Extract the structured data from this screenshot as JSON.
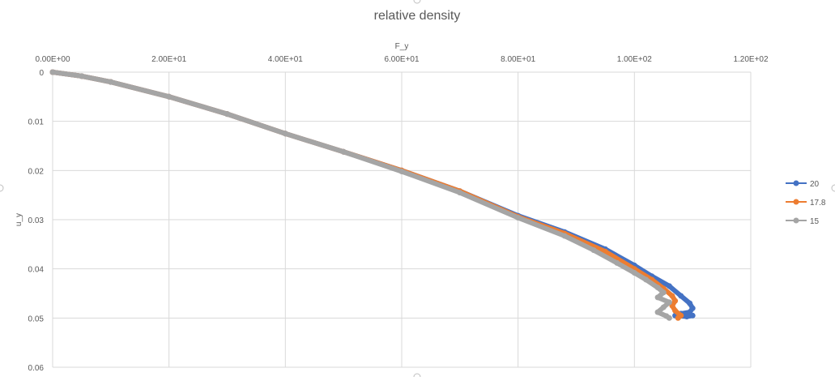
{
  "chart_data": {
    "type": "line",
    "title": "relative density",
    "xlabel": "F_y",
    "ylabel": "u_y",
    "xlim": [
      0,
      120
    ],
    "ylim": [
      0,
      0.06
    ],
    "y_reversed": true,
    "x_axis_position": "top",
    "x_ticks": [
      0,
      20,
      40,
      60,
      80,
      100,
      120
    ],
    "x_tick_labels": [
      "0.00E+00",
      "2.00E+01",
      "4.00E+01",
      "6.00E+01",
      "8.00E+01",
      "1.00E+02",
      "1.20E+02"
    ],
    "y_ticks": [
      0,
      0.01,
      0.02,
      0.03,
      0.04,
      0.05,
      0.06
    ],
    "y_tick_labels": [
      "0",
      "0.01",
      "0.02",
      "0.03",
      "0.04",
      "0.05",
      "0.06"
    ],
    "grid": true,
    "legend": "right",
    "series": [
      {
        "name": "20",
        "color": "#4472c4",
        "x": [
          0,
          5,
          10,
          20,
          30,
          40,
          50,
          60,
          70,
          80,
          88,
          95,
          100,
          103,
          106,
          108,
          109.5,
          110,
          109.5,
          108,
          107,
          109,
          110
        ],
        "y": [
          0,
          0.0008,
          0.002,
          0.005,
          0.0085,
          0.0125,
          0.0162,
          0.02,
          0.0242,
          0.0292,
          0.0325,
          0.036,
          0.0393,
          0.0415,
          0.0435,
          0.0455,
          0.047,
          0.048,
          0.0488,
          0.0491,
          0.0495,
          0.0497,
          0.0495
        ]
      },
      {
        "name": "17.8",
        "color": "#ed7d31",
        "x": [
          0,
          5,
          10,
          20,
          30,
          40,
          50,
          60,
          70,
          80,
          88,
          95,
          100,
          103,
          105,
          106.5,
          107,
          106.5,
          107,
          108,
          107.5
        ],
        "y": [
          0,
          0.0008,
          0.002,
          0.005,
          0.0085,
          0.0125,
          0.0162,
          0.02,
          0.0242,
          0.0294,
          0.0328,
          0.0365,
          0.04,
          0.0422,
          0.044,
          0.0455,
          0.0465,
          0.0475,
          0.0485,
          0.0495,
          0.05
        ]
      },
      {
        "name": "15",
        "color": "#a5a5a5",
        "x": [
          0,
          5,
          10,
          20,
          30,
          40,
          50,
          60,
          70,
          80,
          88,
          93,
          97,
          100,
          102,
          104,
          105,
          104,
          106,
          105,
          104,
          105.5,
          106
        ],
        "y": [
          0,
          0.0008,
          0.002,
          0.005,
          0.0085,
          0.0125,
          0.0162,
          0.0202,
          0.0245,
          0.0296,
          0.0333,
          0.0362,
          0.0388,
          0.0408,
          0.0422,
          0.0438,
          0.0448,
          0.0458,
          0.0468,
          0.0478,
          0.0488,
          0.0496,
          0.05
        ]
      }
    ]
  }
}
